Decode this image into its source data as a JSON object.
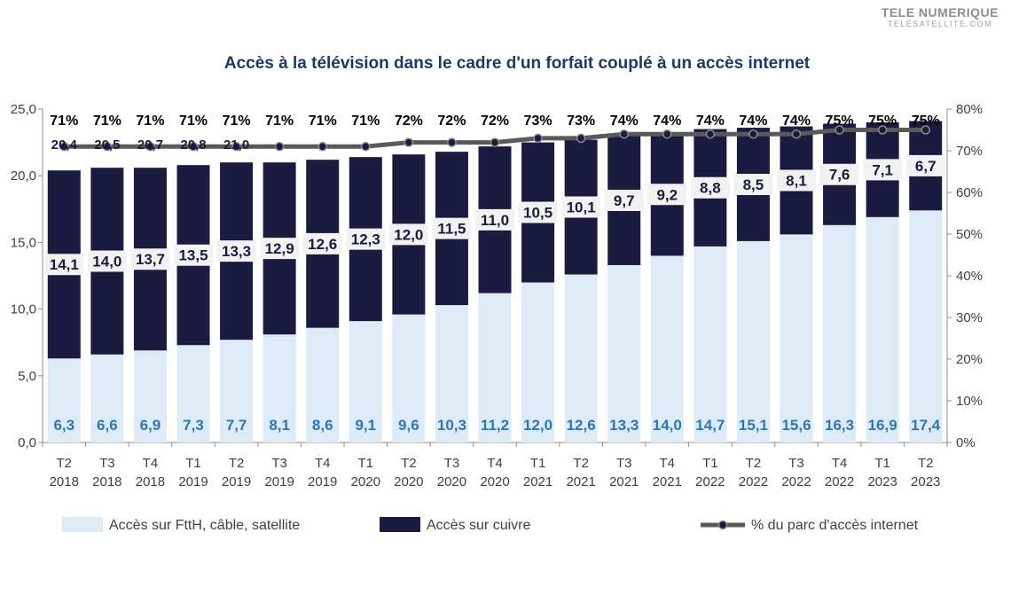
{
  "watermark": {
    "main": "TELE NUMERIQUE",
    "sub": "TELESATELLITE.COM"
  },
  "chart_data": {
    "type": "bar",
    "stacked": true,
    "title": "Accès à la télévision dans le cadre d'un forfait couplé à un accès internet",
    "categories": [
      "T2 2018",
      "T3 2018",
      "T4 2018",
      "T1 2019",
      "T2 2019",
      "T3 2019",
      "T4 2019",
      "T1 2020",
      "T2 2020",
      "T3 2020",
      "T4 2020",
      "T1 2021",
      "T2 2021",
      "T3 2021",
      "T4 2021",
      "T1 2022",
      "T2 2022",
      "T3 2022",
      "T4 2022",
      "T1 2023",
      "T2 2023"
    ],
    "category_lines": [
      [
        "T2",
        "2018"
      ],
      [
        "T3",
        "2018"
      ],
      [
        "T4",
        "2018"
      ],
      [
        "T1",
        "2019"
      ],
      [
        "T2",
        "2019"
      ],
      [
        "T3",
        "2019"
      ],
      [
        "T4",
        "2019"
      ],
      [
        "T1",
        "2020"
      ],
      [
        "T2",
        "2020"
      ],
      [
        "T3",
        "2020"
      ],
      [
        "T4",
        "2020"
      ],
      [
        "T1",
        "2021"
      ],
      [
        "T2",
        "2021"
      ],
      [
        "T3",
        "2021"
      ],
      [
        "T4",
        "2021"
      ],
      [
        "T1",
        "2022"
      ],
      [
        "T2",
        "2022"
      ],
      [
        "T3",
        "2022"
      ],
      [
        "T4",
        "2022"
      ],
      [
        "T1",
        "2023"
      ],
      [
        "T2",
        "2023"
      ]
    ],
    "series": [
      {
        "name": "Accès sur FttH, câble, satellite",
        "color": "#ddebf7",
        "values": [
          6.3,
          6.6,
          6.9,
          7.3,
          7.7,
          8.1,
          8.6,
          9.1,
          9.6,
          10.3,
          11.2,
          12.0,
          12.6,
          13.3,
          14.0,
          14.7,
          15.1,
          15.6,
          16.3,
          16.9,
          17.4
        ],
        "labels": [
          "6,3",
          "6,6",
          "6,9",
          "7,3",
          "7,7",
          "8,1",
          "8,6",
          "9,1",
          "9,6",
          "10,3",
          "11,2",
          "12,0",
          "12,6",
          "13,3",
          "14,0",
          "14,7",
          "15,1",
          "15,6",
          "16,3",
          "16,9",
          "17,4"
        ]
      },
      {
        "name": "Accès sur cuivre",
        "color": "#1b1a3f",
        "values": [
          14.1,
          14.0,
          13.7,
          13.5,
          13.3,
          12.9,
          12.6,
          12.3,
          12.0,
          11.5,
          11.0,
          10.5,
          10.1,
          9.7,
          9.2,
          8.8,
          8.5,
          8.1,
          7.6,
          7.1,
          6.7
        ],
        "labels": [
          "14,1",
          "14,0",
          "13,7",
          "13,5",
          "13,3",
          "12,9",
          "12,6",
          "12,3",
          "12,0",
          "11,5",
          "11,0",
          "10,5",
          "10,1",
          "9,7",
          "9,2",
          "8,8",
          "8,5",
          "8,1",
          "7,6",
          "7,1",
          "6,7"
        ]
      },
      {
        "name": "% du parc d'accès internet",
        "type": "line",
        "axis": "right",
        "color": "#595959",
        "values": [
          71,
          71,
          71,
          71,
          71,
          71,
          71,
          71,
          72,
          72,
          72,
          73,
          73,
          74,
          74,
          74,
          74,
          74,
          75,
          75,
          75
        ],
        "labels": [
          "71%",
          "71%",
          "71%",
          "71%",
          "71%",
          "71%",
          "71%",
          "71%",
          "72%",
          "72%",
          "72%",
          "73%",
          "73%",
          "74%",
          "74%",
          "74%",
          "74%",
          "74%",
          "75%",
          "75%",
          "75%"
        ]
      }
    ],
    "totals_partial_labels": [
      "20,4",
      "20,5",
      "20,7",
      "20,8",
      "21,0"
    ],
    "y_left": {
      "ylim": [
        0,
        25
      ],
      "ticks": [
        0,
        5,
        10,
        15,
        20,
        25
      ],
      "tick_labels": [
        "0,0",
        "5,0",
        "10,0",
        "15,0",
        "20,0",
        "25,0"
      ]
    },
    "y_right": {
      "ylim": [
        0,
        80
      ],
      "ticks": [
        0,
        10,
        20,
        30,
        40,
        50,
        60,
        70,
        80
      ],
      "tick_labels": [
        "0%",
        "10%",
        "20%",
        "30%",
        "40%",
        "50%",
        "60%",
        "70%",
        "80%"
      ]
    },
    "xlabel": "",
    "ylabel": "",
    "grid": false,
    "legend_position": "bottom"
  }
}
